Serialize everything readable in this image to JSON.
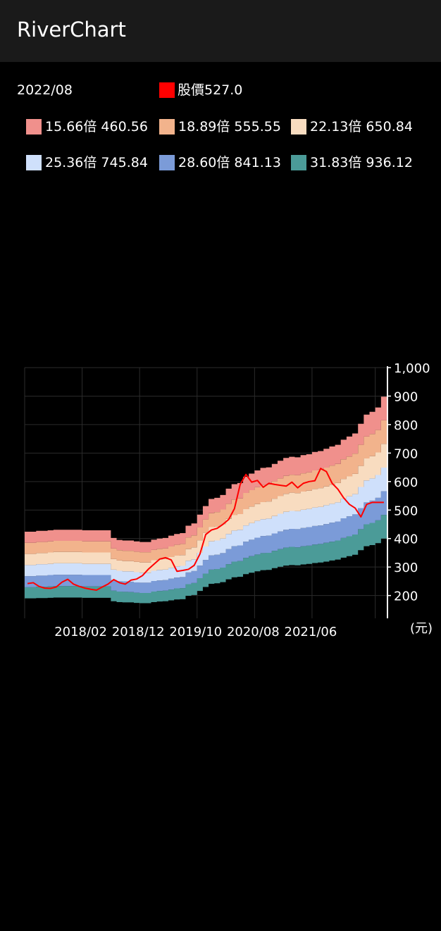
{
  "app": {
    "title": "RiverChart"
  },
  "header": {
    "date": "2022/08",
    "price_label": "股價527.0",
    "price_color": "#ff0000"
  },
  "legend": [
    {
      "label": "15.66倍 460.56",
      "color": "#f0908c"
    },
    {
      "label": "18.89倍 555.55",
      "color": "#f2b38c"
    },
    {
      "label": "22.13倍 650.84",
      "color": "#f8dcc0"
    },
    {
      "label": "25.36倍 745.84",
      "color": "#cfe0fb"
    },
    {
      "label": "28.60倍 841.13",
      "color": "#7b9bd8"
    },
    {
      "label": "31.83倍 936.12",
      "color": "#4b9b98"
    }
  ],
  "chart_data": {
    "type": "area",
    "x_tick_labels": [
      "2018/02",
      "2018/12",
      "2019/10",
      "2020/08",
      "2021/06"
    ],
    "y_ticks": [
      "200",
      "300",
      "400",
      "500",
      "600",
      "700",
      "800",
      "900",
      "1,000"
    ],
    "ylim": [
      120,
      1000
    ],
    "unit_label": "(元)",
    "grid": true,
    "months": [
      "2017/06",
      "2017/07",
      "2017/08",
      "2017/09",
      "2017/10",
      "2017/11",
      "2017/12",
      "2018/01",
      "2018/02",
      "2018/03",
      "2018/04",
      "2018/05",
      "2018/06",
      "2018/07",
      "2018/08",
      "2018/09",
      "2018/10",
      "2018/11",
      "2018/12",
      "2019/01",
      "2019/02",
      "2019/03",
      "2019/04",
      "2019/05",
      "2019/06",
      "2019/07",
      "2019/08",
      "2019/09",
      "2019/10",
      "2019/11",
      "2019/12",
      "2020/01",
      "2020/02",
      "2020/03",
      "2020/04",
      "2020/05",
      "2020/06",
      "2020/07",
      "2020/08",
      "2020/09",
      "2020/10",
      "2020/11",
      "2020/12",
      "2021/01",
      "2021/02",
      "2021/03",
      "2021/04",
      "2021/05",
      "2021/06",
      "2021/07",
      "2021/08",
      "2021/09",
      "2021/10",
      "2021/11",
      "2021/12",
      "2022/01",
      "2022/02",
      "2022/03",
      "2022/04",
      "2022/05",
      "2022/06",
      "2022/07",
      "2022/08"
    ],
    "bands": [
      {
        "name": "15.66倍",
        "values": [
          190,
          190,
          191,
          191,
          192,
          193,
          193,
          193,
          193,
          193,
          192,
          192,
          192,
          192,
          192,
          180,
          177,
          176,
          176,
          174,
          173,
          173,
          177,
          179,
          180,
          183,
          186,
          187,
          199,
          202,
          216,
          230,
          241,
          243,
          247,
          257,
          264,
          266,
          275,
          280,
          285,
          289,
          290,
          296,
          301,
          305,
          307,
          306,
          309,
          311,
          314,
          316,
          319,
          323,
          326,
          333,
          338,
          343,
          359,
          373,
          377,
          384,
          400
        ]
      },
      {
        "name": "18.89倍",
        "values": [
          229,
          229,
          231,
          231,
          232,
          233,
          233,
          233,
          233,
          233,
          232,
          232,
          232,
          232,
          232,
          217,
          214,
          213,
          212,
          210,
          209,
          209,
          214,
          216,
          217,
          221,
          225,
          226,
          240,
          244,
          261,
          277,
          291,
          293,
          298,
          310,
          319,
          321,
          332,
          338,
          344,
          349,
          350,
          357,
          363,
          368,
          371,
          369,
          373,
          375,
          379,
          381,
          385,
          389,
          393,
          402,
          408,
          414,
          433,
          450,
          455,
          464,
          483
        ]
      },
      {
        "name": "22.13倍",
        "values": [
          268,
          268,
          270,
          270,
          272,
          273,
          273,
          273,
          273,
          273,
          272,
          272,
          272,
          272,
          272,
          254,
          250,
          249,
          248,
          246,
          245,
          245,
          251,
          253,
          254,
          259,
          263,
          265,
          281,
          286,
          305,
          325,
          341,
          343,
          349,
          363,
          373,
          376,
          389,
          396,
          403,
          409,
          410,
          418,
          425,
          431,
          434,
          433,
          437,
          440,
          444,
          446,
          451,
          456,
          460,
          471,
          478,
          485,
          507,
          527,
          533,
          543,
          566
        ]
      },
      {
        "name": "25.36倍",
        "values": [
          307,
          307,
          310,
          310,
          311,
          313,
          313,
          313,
          313,
          313,
          311,
          311,
          311,
          311,
          311,
          291,
          287,
          285,
          285,
          282,
          280,
          280,
          287,
          290,
          291,
          297,
          302,
          304,
          322,
          327,
          350,
          372,
          390,
          393,
          400,
          416,
          428,
          431,
          446,
          454,
          462,
          468,
          470,
          479,
          487,
          494,
          497,
          496,
          501,
          504,
          509,
          511,
          517,
          522,
          527,
          540,
          548,
          556,
          581,
          604,
          611,
          623,
          649
        ]
      },
      {
        "name": "28.60倍",
        "values": [
          346,
          346,
          349,
          349,
          351,
          353,
          353,
          353,
          353,
          353,
          351,
          351,
          351,
          351,
          351,
          328,
          323,
          321,
          321,
          318,
          316,
          316,
          324,
          327,
          328,
          335,
          340,
          342,
          363,
          369,
          394,
          420,
          440,
          443,
          451,
          469,
          482,
          486,
          503,
          512,
          521,
          528,
          530,
          540,
          549,
          557,
          561,
          559,
          565,
          568,
          574,
          577,
          583,
          589,
          595,
          609,
          618,
          627,
          655,
          681,
          689,
          702,
          732
        ]
      },
      {
        "name": "31.83倍",
        "values": [
          385,
          385,
          388,
          388,
          390,
          392,
          392,
          392,
          392,
          392,
          390,
          390,
          390,
          390,
          390,
          365,
          359,
          357,
          357,
          354,
          352,
          352,
          360,
          364,
          365,
          372,
          378,
          381,
          404,
          411,
          439,
          467,
          489,
          493,
          502,
          522,
          537,
          541,
          560,
          570,
          580,
          588,
          590,
          601,
          611,
          620,
          624,
          622,
          629,
          632,
          639,
          642,
          649,
          656,
          662,
          678,
          688,
          698,
          729,
          758,
          767,
          781,
          815
        ]
      }
    ],
    "top_values": [
      424,
      424,
      427,
      427,
      429,
      431,
      431,
      431,
      431,
      431,
      429,
      429,
      429,
      429,
      429,
      402,
      395,
      393,
      393,
      390,
      388,
      388,
      396,
      400,
      402,
      410,
      416,
      419,
      445,
      453,
      484,
      514,
      539,
      543,
      553,
      575,
      591,
      595,
      617,
      628,
      639,
      648,
      650,
      662,
      673,
      683,
      687,
      685,
      693,
      696,
      704,
      707,
      715,
      723,
      729,
      747,
      758,
      769,
      803,
      835,
      845,
      860,
      898
    ],
    "price": {
      "name": "股價",
      "values": [
        242,
        245,
        232,
        226,
        225,
        230,
        247,
        257,
        240,
        232,
        226,
        222,
        219,
        230,
        240,
        256,
        245,
        240,
        254,
        258,
        270,
        292,
        310,
        328,
        333,
        325,
        285,
        288,
        292,
        306,
        346,
        414,
        430,
        436,
        450,
        467,
        505,
        590,
        625,
        598,
        604,
        580,
        594,
        590,
        587,
        584,
        598,
        578,
        594,
        600,
        603,
        646,
        635,
        594,
        573,
        543,
        520,
        507,
        476,
        520,
        527,
        527,
        527
      ]
    }
  }
}
